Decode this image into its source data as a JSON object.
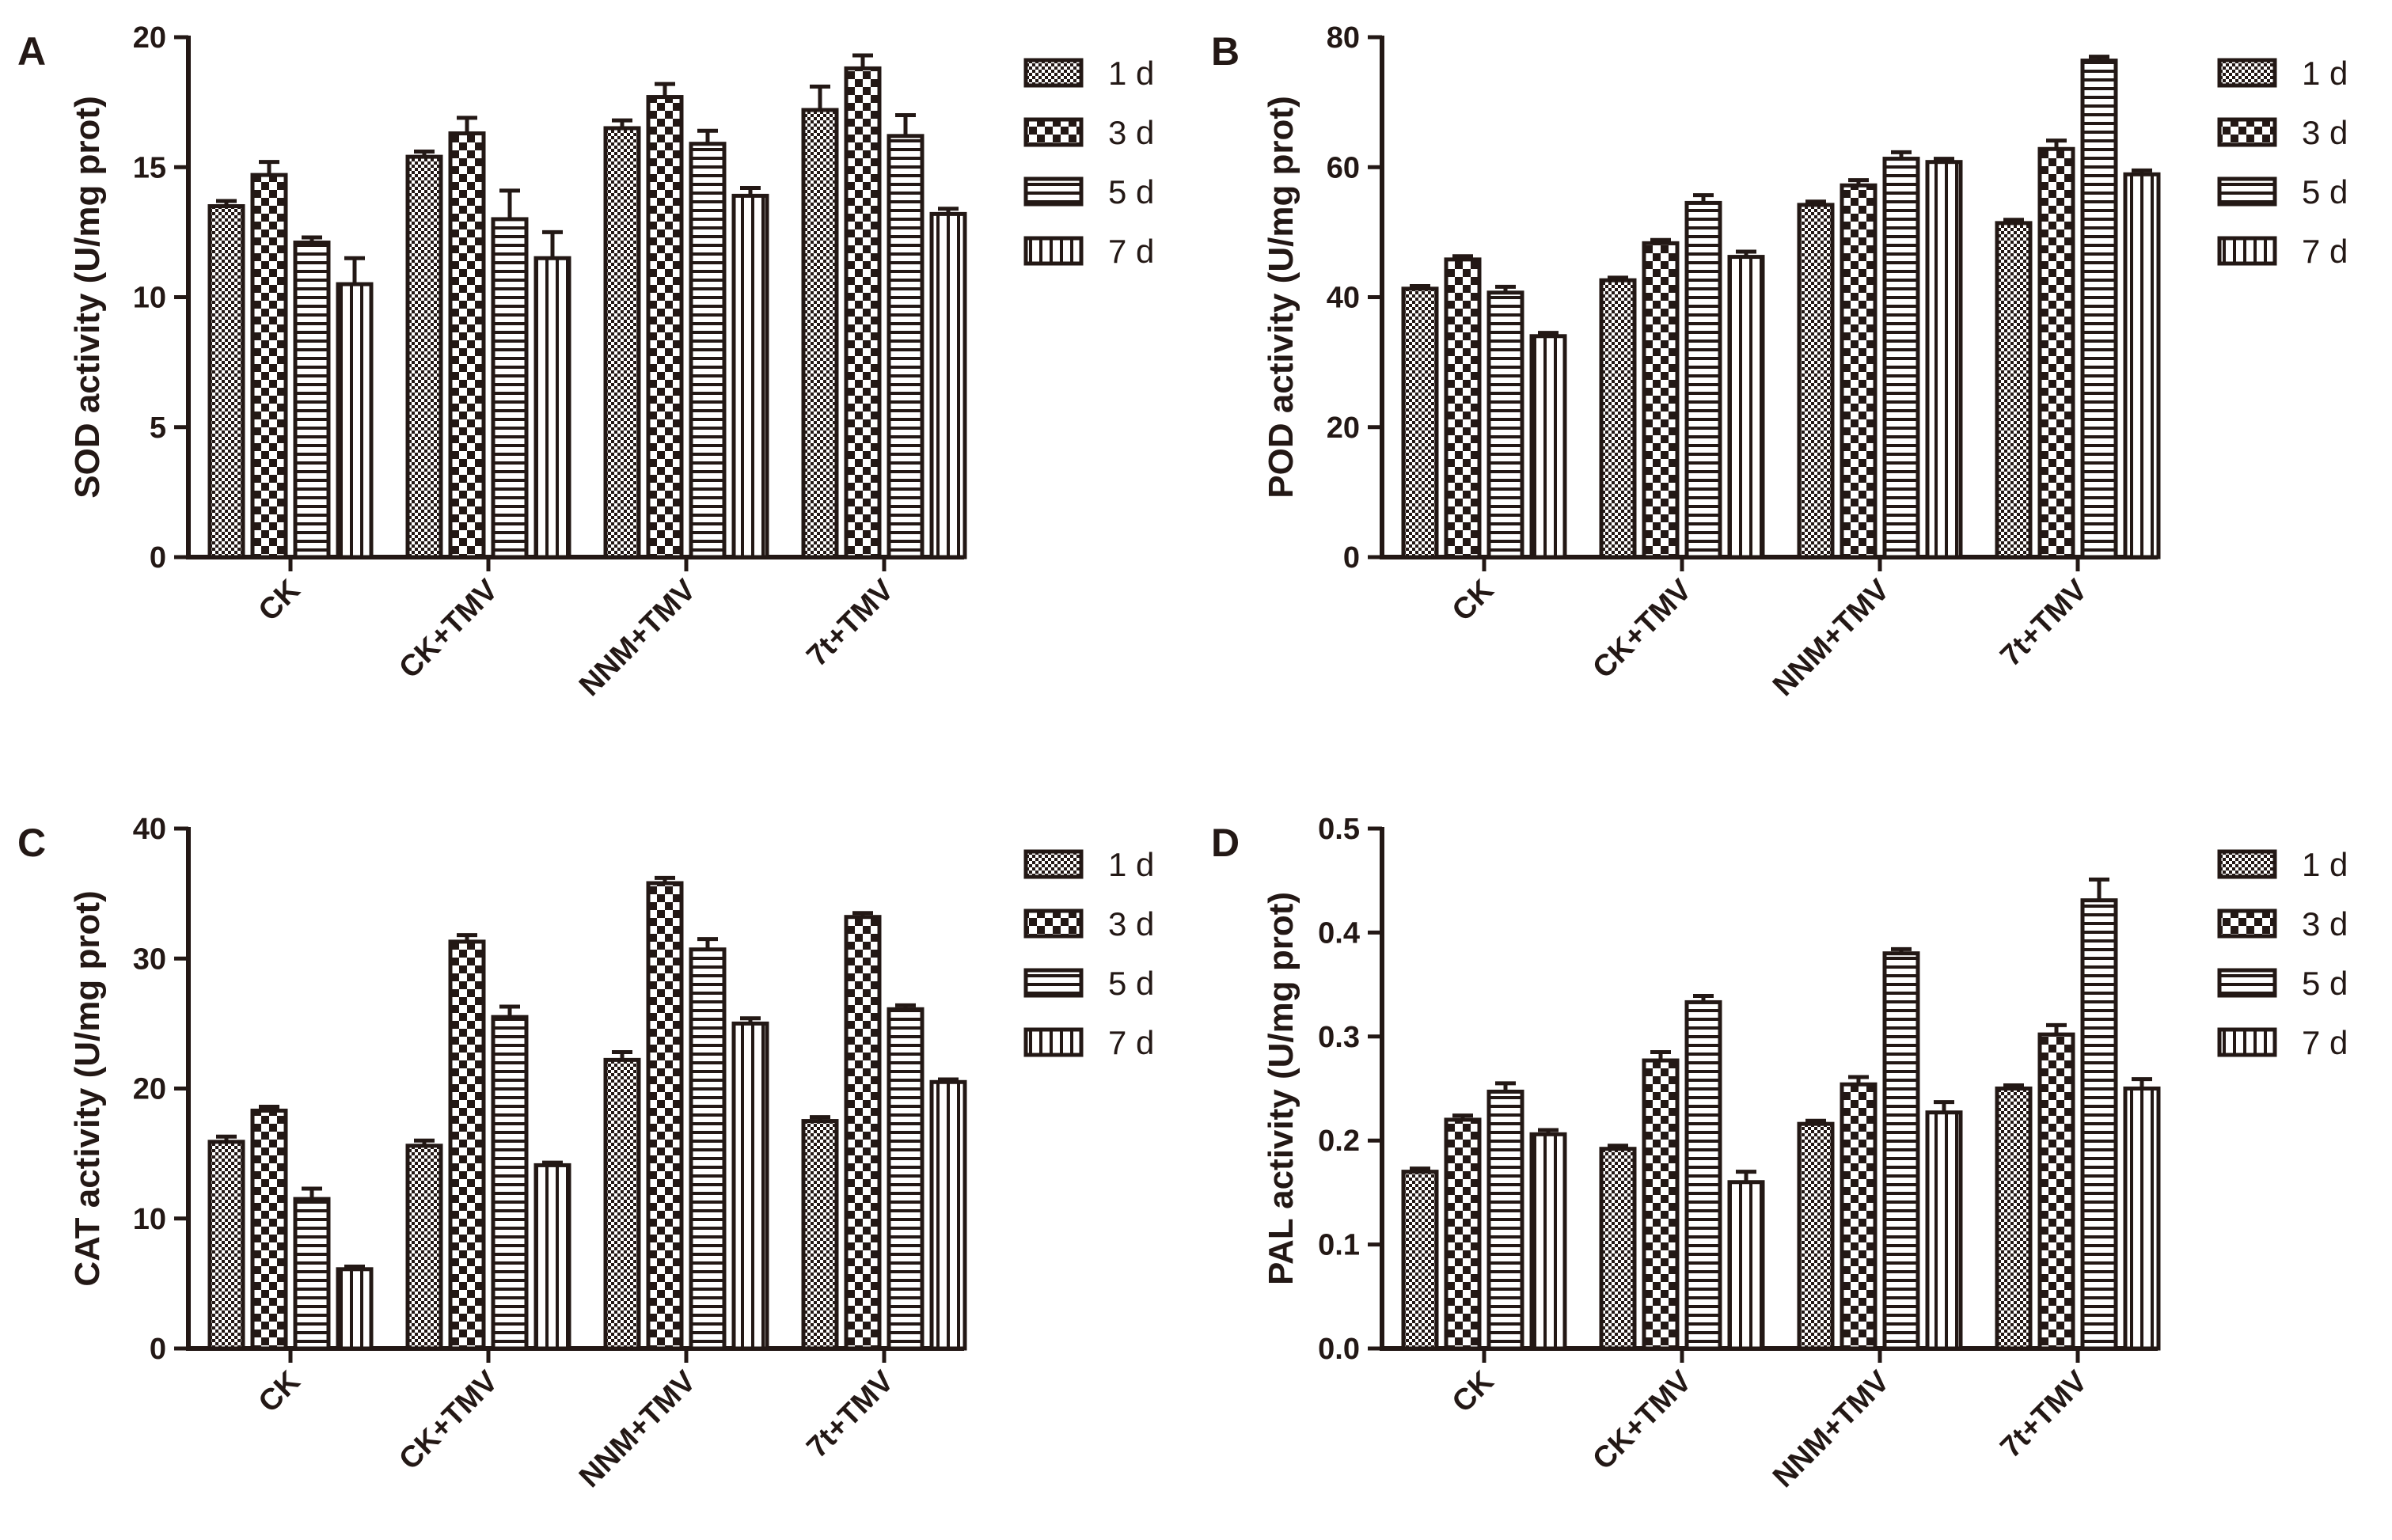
{
  "chart_data": [
    {
      "panel": "A",
      "type": "bar",
      "ylabel": "SOD activity (U/mg prot)",
      "categories": [
        "CK",
        "CK+TMV",
        "NNM+TMV",
        "7t+TMV"
      ],
      "ylim": [
        0,
        20
      ],
      "yticks": [
        "0",
        "5",
        "10",
        "15",
        "20"
      ],
      "series": [
        {
          "name": "1 d",
          "values": [
            13.5,
            15.4,
            16.5,
            17.2
          ],
          "errors": [
            0.2,
            0.2,
            0.3,
            0.9
          ]
        },
        {
          "name": "3 d",
          "values": [
            14.7,
            16.3,
            17.7,
            18.8
          ],
          "errors": [
            0.5,
            0.6,
            0.5,
            0.5
          ]
        },
        {
          "name": "5 d",
          "values": [
            12.1,
            13.0,
            15.9,
            16.2
          ],
          "errors": [
            0.2,
            1.1,
            0.5,
            0.8
          ]
        },
        {
          "name": "7 d",
          "values": [
            10.5,
            11.5,
            13.9,
            13.2
          ],
          "errors": [
            1.0,
            1.0,
            0.3,
            0.2
          ]
        }
      ]
    },
    {
      "panel": "B",
      "type": "bar",
      "ylabel": "POD activity (U/mg prot)",
      "categories": [
        "CK",
        "CK+TMV",
        "NNM+TMV",
        "7t+TMV"
      ],
      "ylim": [
        0,
        80
      ],
      "yticks": [
        "0",
        "20",
        "40",
        "60",
        "80"
      ],
      "series": [
        {
          "name": "1 d",
          "values": [
            41.3,
            42.6,
            54.2,
            51.4
          ],
          "errors": [
            0.4,
            0.4,
            0.5,
            0.5
          ]
        },
        {
          "name": "3 d",
          "values": [
            45.8,
            48.3,
            57.2,
            62.8
          ],
          "errors": [
            0.5,
            0.5,
            0.8,
            1.3
          ]
        },
        {
          "name": "5 d",
          "values": [
            40.7,
            54.5,
            61.3,
            76.4
          ],
          "errors": [
            0.9,
            1.2,
            1.0,
            0.6
          ]
        },
        {
          "name": "7 d",
          "values": [
            34.0,
            46.2,
            60.8,
            58.9
          ],
          "errors": [
            0.5,
            0.8,
            0.5,
            0.6
          ]
        }
      ]
    },
    {
      "panel": "C",
      "type": "bar",
      "ylabel": "CAT activity (U/mg prot)",
      "categories": [
        "CK",
        "CK+TMV",
        "NNM+TMV",
        "7t+TMV"
      ],
      "ylim": [
        0,
        40
      ],
      "yticks": [
        "0",
        "10",
        "20",
        "30",
        "40"
      ],
      "series": [
        {
          "name": "1 d",
          "values": [
            15.9,
            15.6,
            22.2,
            17.5
          ],
          "errors": [
            0.4,
            0.4,
            0.6,
            0.3
          ]
        },
        {
          "name": "3 d",
          "values": [
            18.3,
            31.3,
            35.8,
            33.2
          ],
          "errors": [
            0.3,
            0.5,
            0.4,
            0.3
          ]
        },
        {
          "name": "5 d",
          "values": [
            11.5,
            25.5,
            30.7,
            26.1
          ],
          "errors": [
            0.8,
            0.8,
            0.8,
            0.3
          ]
        },
        {
          "name": "7 d",
          "values": [
            6.1,
            14.1,
            25.0,
            20.5
          ],
          "errors": [
            0.2,
            0.2,
            0.4,
            0.2
          ]
        }
      ]
    },
    {
      "panel": "D",
      "type": "bar",
      "ylabel": "PAL activity (U/mg prot)",
      "categories": [
        "CK",
        "CK+TMV",
        "NNM+TMV",
        "7t+TMV"
      ],
      "ylim": [
        0,
        0.5
      ],
      "yticks": [
        "0.0",
        "0.1",
        "0.2",
        "0.3",
        "0.4",
        "0.5"
      ],
      "series": [
        {
          "name": "1 d",
          "values": [
            0.17,
            0.192,
            0.216,
            0.25
          ],
          "errors": [
            0.003,
            0.003,
            0.003,
            0.003
          ]
        },
        {
          "name": "3 d",
          "values": [
            0.22,
            0.277,
            0.254,
            0.302
          ],
          "errors": [
            0.004,
            0.008,
            0.007,
            0.009
          ]
        },
        {
          "name": "5 d",
          "values": [
            0.247,
            0.333,
            0.38,
            0.431
          ],
          "errors": [
            0.008,
            0.006,
            0.004,
            0.02
          ]
        },
        {
          "name": "7 d",
          "values": [
            0.206,
            0.16,
            0.227,
            0.25
          ],
          "errors": [
            0.004,
            0.01,
            0.01,
            0.009
          ]
        }
      ]
    }
  ],
  "legend": {
    "items": [
      "1 d",
      "3 d",
      "5 d",
      "7 d"
    ]
  },
  "colors": {
    "ink": "#231815",
    "background": "#ffffff"
  }
}
